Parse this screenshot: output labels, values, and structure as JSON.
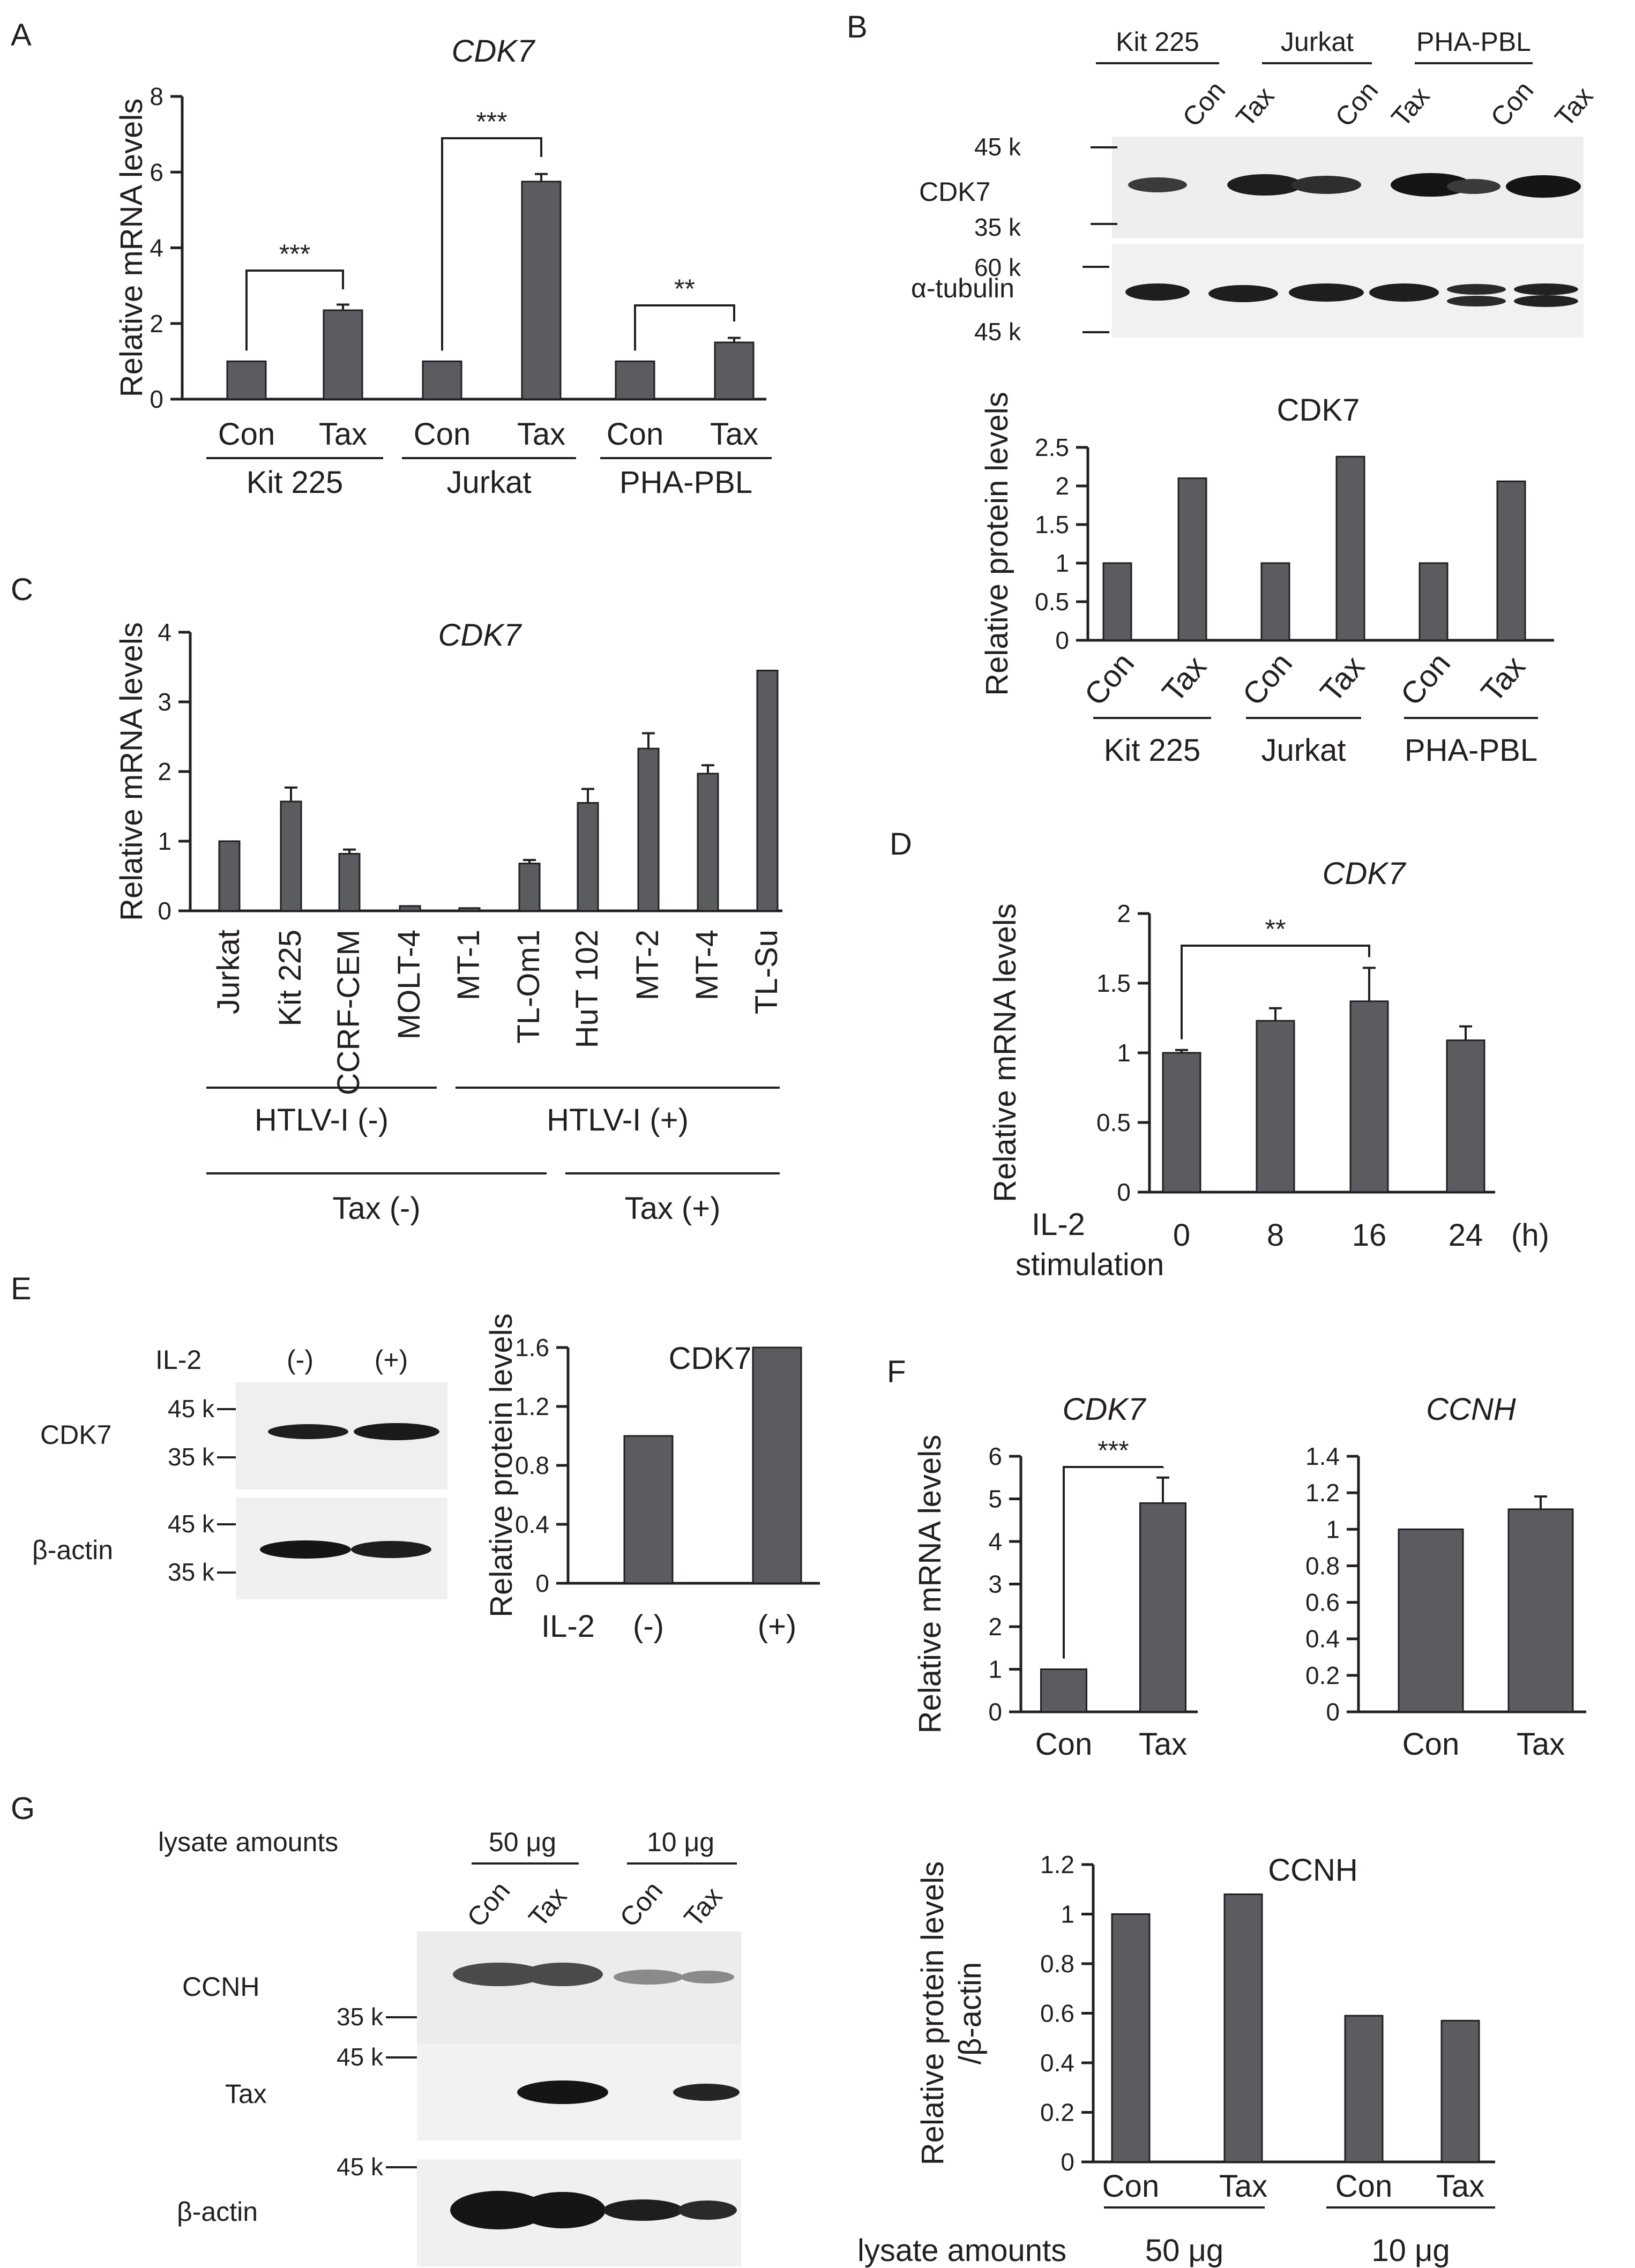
{
  "panels": {
    "A": "A",
    "B": "B",
    "C": "C",
    "D": "D",
    "E": "E",
    "F": "F",
    "G": "G"
  },
  "colors": {
    "bar": "#5a5c60",
    "axis": "#231f20",
    "blot_bg": "#eeeeee",
    "band": "#1e1e1e"
  },
  "blotB": {
    "groups": [
      "Kit 225",
      "Jurkat",
      "PHA-PBL"
    ],
    "lanes": [
      "Con",
      "Tax",
      "Con",
      "Tax",
      "Con",
      "Tax"
    ],
    "rows": [
      "CDK7",
      "α-tubulin"
    ],
    "markers": [
      "45 k",
      "35 k",
      "60 k",
      "45 k"
    ]
  },
  "blotE": {
    "title": "IL-2",
    "lanes": [
      "(-)",
      "(+)"
    ],
    "rows": [
      "CDK7",
      "β-actin"
    ],
    "markers": [
      "45 k",
      "35 k",
      "45 k",
      "35 k"
    ]
  },
  "blotG": {
    "title": "lysate amounts",
    "groups": [
      "50 μg",
      "10 μg"
    ],
    "lanes": [
      "Con",
      "Tax",
      "Con",
      "Tax"
    ],
    "rows": [
      "CCNH",
      "Tax",
      "β-actin"
    ],
    "markers": [
      "35 k",
      "45 k",
      "45 k"
    ]
  },
  "chart_data": [
    {
      "id": "A",
      "type": "bar",
      "title": "CDK7",
      "ylabel": "Relative mRNA levels",
      "categories": [
        "Con",
        "Tax",
        "Con",
        "Tax",
        "Con",
        "Tax"
      ],
      "groups": [
        "Kit 225",
        "Jurkat",
        "PHA-PBL"
      ],
      "values": [
        1.0,
        2.35,
        1.0,
        5.75,
        1.0,
        1.5
      ],
      "errors": [
        0,
        0.15,
        0,
        0.2,
        0,
        0.12
      ],
      "ylim": [
        0,
        8
      ],
      "yticks": [
        0,
        2,
        4,
        6,
        8
      ],
      "significance": [
        {
          "between": [
            0,
            1
          ],
          "label": "***"
        },
        {
          "between": [
            2,
            3
          ],
          "label": "***"
        },
        {
          "between": [
            4,
            5
          ],
          "label": "**"
        }
      ]
    },
    {
      "id": "B",
      "type": "bar",
      "title": "CDK7",
      "ylabel": "Relative protein levels",
      "categories": [
        "Con",
        "Tax",
        "Con",
        "Tax",
        "Con",
        "Tax"
      ],
      "groups": [
        "Kit 225",
        "Jurkat",
        "PHA-PBL"
      ],
      "values": [
        1.0,
        2.1,
        1.0,
        2.38,
        1.0,
        2.06
      ],
      "ylim": [
        0,
        2.5
      ],
      "yticks": [
        "0",
        "0.5",
        "1",
        "1.5",
        "2",
        "2.5"
      ]
    },
    {
      "id": "C",
      "type": "bar",
      "title": "CDK7",
      "ylabel": "Relative mRNA levels",
      "categories": [
        "Jurkat",
        "Kit 225",
        "CCRF-CEM",
        "MOLT-4",
        "MT-1",
        "TL-Om1",
        "HuT 102",
        "MT-2",
        "MT-4",
        "TL-Su"
      ],
      "values": [
        1.0,
        1.57,
        0.82,
        0.07,
        0.04,
        0.68,
        1.55,
        2.33,
        1.97,
        3.45
      ],
      "errors": [
        0,
        0.2,
        0.06,
        0,
        0,
        0.05,
        0.2,
        0.22,
        0.12,
        0
      ],
      "ylim": [
        0,
        4
      ],
      "yticks": [
        0,
        1,
        2,
        3,
        4
      ],
      "group_rows": [
        [
          {
            "label": "HTLV-I (-)",
            "span": [
              0,
              3
            ]
          },
          {
            "label": "HTLV-I (+)",
            "span": [
              4,
              9
            ]
          }
        ],
        [
          {
            "label": "Tax (-)",
            "span": [
              0,
              5
            ]
          },
          {
            "label": "Tax (+)",
            "span": [
              6,
              9
            ]
          }
        ]
      ]
    },
    {
      "id": "D",
      "type": "bar",
      "title": "CDK7",
      "ylabel": "Relative mRNA levels",
      "xlabel": "IL-2 stimulation",
      "unit": "(h)",
      "categories": [
        "0",
        "8",
        "16",
        "24"
      ],
      "values": [
        1.0,
        1.23,
        1.37,
        1.09
      ],
      "errors": [
        0.02,
        0.09,
        0.24,
        0.1
      ],
      "ylim": [
        0,
        2
      ],
      "yticks": [
        "0",
        "0.5",
        "1",
        "1.5",
        "2"
      ],
      "significance": [
        {
          "between": [
            0,
            2
          ],
          "label": "**"
        }
      ]
    },
    {
      "id": "E",
      "type": "bar",
      "title": "CDK7",
      "ylabel": "Relative protein levels",
      "xlabel": "IL-2",
      "categories": [
        "(-)",
        "(+)"
      ],
      "values": [
        1.0,
        1.6
      ],
      "ylim": [
        0,
        1.6
      ],
      "yticks": [
        "0",
        "0.4",
        "0.8",
        "1.2",
        "1.6"
      ]
    },
    {
      "id": "F1",
      "type": "bar",
      "title": "CDK7",
      "ylabel": "Relative mRNA levels",
      "categories": [
        "Con",
        "Tax"
      ],
      "values": [
        1.0,
        4.9
      ],
      "errors": [
        0,
        0.6
      ],
      "ylim": [
        0,
        6
      ],
      "yticks": [
        0,
        1,
        2,
        3,
        4,
        5,
        6
      ],
      "significance": [
        {
          "between": [
            0,
            1
          ],
          "label": "***"
        }
      ]
    },
    {
      "id": "F2",
      "type": "bar",
      "title": "CCNH",
      "ylabel": "",
      "categories": [
        "Con",
        "Tax"
      ],
      "values": [
        1.0,
        1.11
      ],
      "errors": [
        0,
        0.07
      ],
      "ylim": [
        0,
        1.4
      ],
      "yticks": [
        "0",
        "0.2",
        "0.4",
        "0.6",
        "0.8",
        "1",
        "1.2",
        "1.4"
      ]
    },
    {
      "id": "G",
      "type": "bar",
      "title": "CCNH",
      "ylabel": "Relative protein levels /β-actin",
      "ylabel_lines": [
        "Relative protein levels",
        "/β-actin"
      ],
      "xlabel": "lysate amounts",
      "categories": [
        "Con",
        "Tax",
        "Con",
        "Tax"
      ],
      "groups": [
        "50 μg",
        "10 μg"
      ],
      "values": [
        1.0,
        1.08,
        0.59,
        0.57
      ],
      "ylim": [
        0,
        1.2
      ],
      "yticks": [
        "0",
        "0.2",
        "0.4",
        "0.6",
        "0.8",
        "1",
        "1.2"
      ]
    }
  ]
}
